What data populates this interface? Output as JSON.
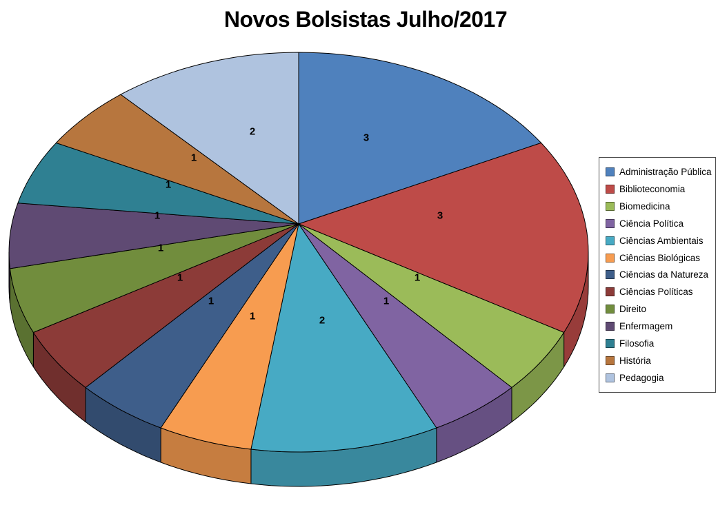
{
  "title": "Novos Bolsistas Julho/2017",
  "chart_data": {
    "type": "pie",
    "projection": "3d",
    "title": "Novos Bolsistas Julho/2017",
    "legend_position": "right",
    "direction": "clockwise",
    "start_angle_deg": 0,
    "total": 19,
    "categories": [
      "Administração Pública",
      "Biblioteconomia",
      "Biomedicina",
      "Ciência Política",
      "Ciências Ambientais",
      "Ciências Biológicas",
      "Ciências da Natureza",
      "Ciências Políticas",
      "Direito",
      "Enfermagem",
      "Filosofia",
      "História",
      "Pedagogia"
    ],
    "values": [
      3,
      3,
      1,
      1,
      2,
      1,
      1,
      1,
      1,
      1,
      1,
      1,
      2
    ],
    "data_labels": [
      "3",
      "3",
      "1",
      "1",
      "2",
      "1",
      "1",
      "1",
      "1",
      "1",
      "1",
      "1",
      "2"
    ],
    "colors": [
      "#4F81BD",
      "#BE4B48",
      "#9BBB59",
      "#8064A2",
      "#47AAC4",
      "#F79C50",
      "#3E5E8A",
      "#8C3B38",
      "#718D3D",
      "#5F4A73",
      "#2F8092",
      "#B7763E",
      "#AFC3DF"
    ],
    "background": "#FFFFFF"
  }
}
